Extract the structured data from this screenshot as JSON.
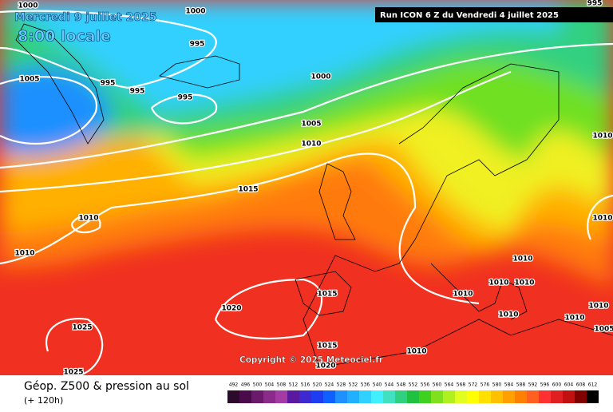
{
  "header": {
    "date": "Mercredi 9 juillet 2025",
    "time": "8:00 locale",
    "run": "Run ICON 6 Z du Vendredi 4 juillet 2025"
  },
  "copyright": "Copyright © 2025 Meteociel.fr",
  "footer": {
    "title": "Géop. Z500 & pression au sol",
    "lead": "(+ 120h)"
  },
  "isobars": [
    "1000",
    "1000",
    "995",
    "995",
    "1005",
    "995",
    "995",
    "995",
    "1000",
    "1005",
    "1010",
    "1015",
    "1010",
    "1010",
    "1010",
    "1010",
    "1010",
    "1010",
    "1010",
    "1015",
    "1010",
    "1020",
    "1010",
    "1010",
    "1010",
    "1005",
    "1025",
    "1025",
    "1015",
    "1020",
    "1010"
  ],
  "scale": {
    "values": [
      492,
      496,
      500,
      504,
      508,
      512,
      516,
      520,
      524,
      528,
      532,
      536,
      540,
      544,
      548,
      552,
      556,
      560,
      564,
      568,
      572,
      576,
      580,
      584,
      588,
      592,
      596,
      600,
      604,
      608,
      612
    ],
    "colors": [
      "#2b0a2b",
      "#4b0b4b",
      "#6b1a6b",
      "#8a2a8a",
      "#a43aa4",
      "#5a1aa0",
      "#3c2ad0",
      "#1e3cf0",
      "#1060ff",
      "#1e90ff",
      "#20b0ff",
      "#30d0ff",
      "#40f0ff",
      "#40e0c0",
      "#30d080",
      "#20c040",
      "#40d020",
      "#80e020",
      "#b0f020",
      "#e0ff20",
      "#ffff00",
      "#ffe000",
      "#ffc000",
      "#ffa000",
      "#ff8000",
      "#ff6020",
      "#ff3030",
      "#e02020",
      "#c01010",
      "#800000",
      "#000000"
    ]
  }
}
